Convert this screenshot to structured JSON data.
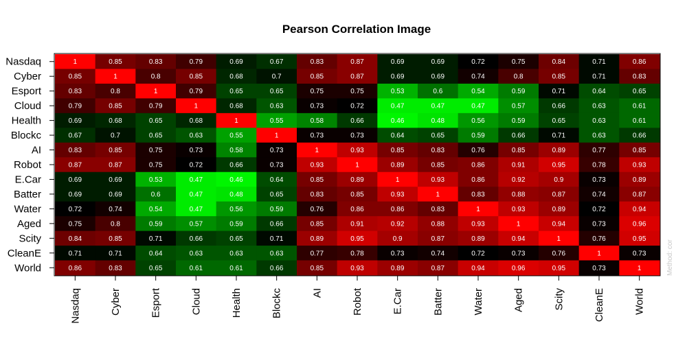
{
  "chart_data": {
    "type": "heatmap",
    "title": "Pearson Correlation  Image",
    "side_note": "Method: cor",
    "rows": [
      "Nasdaq",
      "Cyber",
      "Esport",
      "Cloud",
      "Health",
      "Blockc",
      "AI",
      "Robot",
      "E.Car",
      "Batter",
      "Water",
      "Aged",
      "Scity",
      "CleanE",
      "World"
    ],
    "columns": [
      "Nasdaq",
      "Cyber",
      "Esport",
      "Cloud",
      "Health",
      "Blockc",
      "AI",
      "Robot",
      "E.Car",
      "Batter",
      "Water",
      "Aged",
      "Scity",
      "CleanE",
      "World"
    ],
    "values": [
      [
        1,
        0.85,
        0.83,
        0.79,
        0.69,
        0.67,
        0.83,
        0.87,
        0.69,
        0.69,
        0.72,
        0.75,
        0.84,
        0.71,
        0.86
      ],
      [
        0.85,
        1,
        0.8,
        0.85,
        0.68,
        0.7,
        0.85,
        0.87,
        0.69,
        0.69,
        0.74,
        0.8,
        0.85,
        0.71,
        0.83
      ],
      [
        0.83,
        0.8,
        1,
        0.79,
        0.65,
        0.65,
        0.75,
        0.75,
        0.53,
        0.6,
        0.54,
        0.59,
        0.71,
        0.64,
        0.65
      ],
      [
        0.79,
        0.85,
        0.79,
        1,
        0.68,
        0.63,
        0.73,
        0.72,
        0.47,
        0.47,
        0.47,
        0.57,
        0.66,
        0.63,
        0.61
      ],
      [
        0.69,
        0.68,
        0.65,
        0.68,
        1,
        0.55,
        0.58,
        0.66,
        0.46,
        0.48,
        0.56,
        0.59,
        0.65,
        0.63,
        0.61
      ],
      [
        0.67,
        0.7,
        0.65,
        0.63,
        0.55,
        1,
        0.73,
        0.73,
        0.64,
        0.65,
        0.59,
        0.66,
        0.71,
        0.63,
        0.66
      ],
      [
        0.83,
        0.85,
        0.75,
        0.73,
        0.58,
        0.73,
        1,
        0.93,
        0.85,
        0.83,
        0.76,
        0.85,
        0.89,
        0.77,
        0.85
      ],
      [
        0.87,
        0.87,
        0.75,
        0.72,
        0.66,
        0.73,
        0.93,
        1,
        0.89,
        0.85,
        0.86,
        0.91,
        0.95,
        0.78,
        0.93
      ],
      [
        0.69,
        0.69,
        0.53,
        0.47,
        0.46,
        0.64,
        0.85,
        0.89,
        1,
        0.93,
        0.86,
        0.92,
        0.9,
        0.73,
        0.89
      ],
      [
        0.69,
        0.69,
        0.6,
        0.47,
        0.48,
        0.65,
        0.83,
        0.85,
        0.93,
        1,
        0.83,
        0.88,
        0.87,
        0.74,
        0.87
      ],
      [
        0.72,
        0.74,
        0.54,
        0.47,
        0.56,
        0.59,
        0.76,
        0.86,
        0.86,
        0.83,
        1,
        0.93,
        0.89,
        0.72,
        0.94
      ],
      [
        0.75,
        0.8,
        0.59,
        0.57,
        0.59,
        0.66,
        0.85,
        0.91,
        0.92,
        0.88,
        0.93,
        1,
        0.94,
        0.73,
        0.96
      ],
      [
        0.84,
        0.85,
        0.71,
        0.66,
        0.65,
        0.71,
        0.89,
        0.95,
        0.9,
        0.87,
        0.89,
        0.94,
        1,
        0.76,
        0.95
      ],
      [
        0.71,
        0.71,
        0.64,
        0.63,
        0.63,
        0.63,
        0.77,
        0.78,
        0.73,
        0.74,
        0.72,
        0.73,
        0.76,
        1,
        0.73
      ],
      [
        0.86,
        0.83,
        0.65,
        0.61,
        0.61,
        0.66,
        0.85,
        0.93,
        0.89,
        0.87,
        0.94,
        0.96,
        0.95,
        0.73,
        1
      ]
    ],
    "color_scale": {
      "low": "#00ff00",
      "mid": "#000000",
      "high": "#ff0000"
    },
    "grid": false,
    "legend": "none"
  }
}
